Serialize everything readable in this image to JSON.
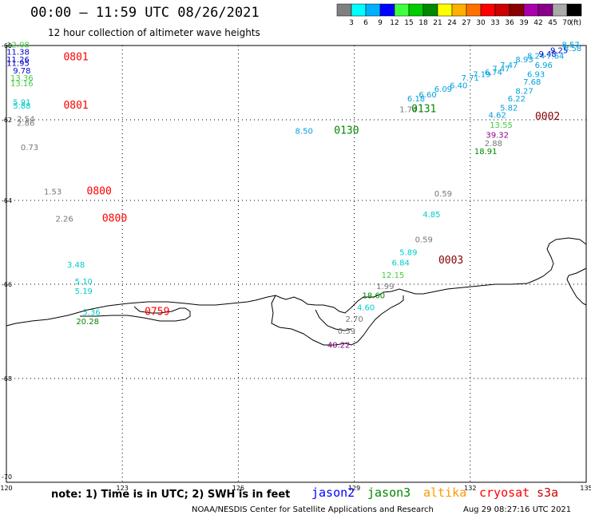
{
  "header": {
    "title": "00:00 – 11:59 UTC 08/26/2021",
    "subtitle": "12 hour collection of altimeter wave heights"
  },
  "colorbar": {
    "unit": "(ft)",
    "colors": [
      "#808080",
      "#00ffff",
      "#00b0ff",
      "#0000ff",
      "#40ff40",
      "#00cc00",
      "#008800",
      "#ffff00",
      "#ffb000",
      "#ff7000",
      "#ff0000",
      "#cc0000",
      "#880000",
      "#aa00aa",
      "#880088",
      "#aaaaaa",
      "#000000"
    ],
    "labels": [
      "3",
      "6",
      "9",
      "12",
      "15",
      "18",
      "21",
      "24",
      "27",
      "30",
      "33",
      "36",
      "39",
      "42",
      "45",
      "70"
    ]
  },
  "axes": {
    "lon_ticks": [
      120,
      123,
      126,
      129,
      132,
      135
    ],
    "lat_ticks": [
      -60,
      -62,
      -64,
      -66,
      -68,
      -70
    ],
    "lon_tick_labels": [
      "120",
      "123",
      "126",
      "129",
      "132",
      "135"
    ],
    "lat_tick_labels": [
      "-60",
      "-62",
      "-64",
      "-66",
      "-68",
      "-70"
    ]
  },
  "map_colors": {
    "purple": "#880088",
    "gray": "#777777",
    "cyan": "#00cccc",
    "blue": "#0000cc",
    "green": "#008800",
    "lightgreen": "#40cc40",
    "red": "#ff0000",
    "maroon": "#880000",
    "skyblue": "#00a0e0"
  },
  "observations": [
    {
      "lon": 120.3,
      "lat": -60.05,
      "value": "12.08",
      "color": "lightgreen"
    },
    {
      "lon": 120.3,
      "lat": -60.25,
      "value": "11.38",
      "color": "blue"
    },
    {
      "lon": 120.3,
      "lat": -60.45,
      "value": "11.26",
      "color": "blue"
    },
    {
      "lon": 120.3,
      "lat": -60.55,
      "value": "11.95",
      "color": "blue"
    },
    {
      "lon": 120.4,
      "lat": -60.75,
      "value": "9.78",
      "color": "blue"
    },
    {
      "lon": 120.4,
      "lat": -60.95,
      "value": "13.36",
      "color": "lightgreen"
    },
    {
      "lon": 120.4,
      "lat": -61.1,
      "value": "13.16",
      "color": "lightgreen"
    },
    {
      "lon": 120.4,
      "lat": -61.6,
      "value": "5.91",
      "color": "cyan"
    },
    {
      "lon": 120.4,
      "lat": -61.7,
      "value": "5.88",
      "color": "cyan"
    },
    {
      "lon": 120.5,
      "lat": -62.05,
      "value": "2.54",
      "color": "gray"
    },
    {
      "lon": 120.5,
      "lat": -62.15,
      "value": "2.86",
      "color": "gray"
    },
    {
      "lon": 120.6,
      "lat": -62.75,
      "value": "0.73",
      "color": "gray"
    },
    {
      "lon": 121.2,
      "lat": -63.85,
      "value": "1.53",
      "color": "gray"
    },
    {
      "lon": 121.5,
      "lat": -64.5,
      "value": "2.26",
      "color": "gray"
    },
    {
      "lon": 121.8,
      "lat": -65.6,
      "value": "3.48",
      "color": "cyan"
    },
    {
      "lon": 122.0,
      "lat": -66.0,
      "value": "5.10",
      "color": "cyan"
    },
    {
      "lon": 122.0,
      "lat": -66.2,
      "value": "5.19",
      "color": "cyan"
    },
    {
      "lon": 122.2,
      "lat": -66.65,
      "value": "5.36",
      "color": "cyan"
    },
    {
      "lon": 122.1,
      "lat": -66.85,
      "value": "20.28",
      "color": "green"
    },
    {
      "lon": 127.7,
      "lat": -62.35,
      "value": "8.50",
      "color": "skyblue"
    },
    {
      "lon": 130.4,
      "lat": -61.8,
      "value": "1.74",
      "color": "gray"
    },
    {
      "lon": 131.3,
      "lat": -63.9,
      "value": "0.59",
      "color": "gray"
    },
    {
      "lon": 131.0,
      "lat": -64.4,
      "value": "4.85",
      "color": "cyan"
    },
    {
      "lon": 130.8,
      "lat": -65.0,
      "value": "0.59",
      "color": "gray"
    },
    {
      "lon": 130.4,
      "lat": -65.3,
      "value": "5.89",
      "color": "cyan"
    },
    {
      "lon": 130.2,
      "lat": -65.55,
      "value": "6.84",
      "color": "cyan"
    },
    {
      "lon": 130.0,
      "lat": -65.85,
      "value": "12.15",
      "color": "lightgreen"
    },
    {
      "lon": 129.8,
      "lat": -66.1,
      "value": "1.99",
      "color": "gray"
    },
    {
      "lon": 129.5,
      "lat": -66.3,
      "value": "18.60",
      "color": "green"
    },
    {
      "lon": 129.3,
      "lat": -66.55,
      "value": "4.60",
      "color": "cyan"
    },
    {
      "lon": 129.0,
      "lat": -66.8,
      "value": "2.70",
      "color": "gray"
    },
    {
      "lon": 128.8,
      "lat": -67.05,
      "value": "0.59",
      "color": "gray"
    },
    {
      "lon": 128.6,
      "lat": -67.35,
      "value": "40.22",
      "color": "purple"
    },
    {
      "lon": 130.6,
      "lat": -61.5,
      "value": "6.18",
      "color": "skyblue"
    },
    {
      "lon": 130.9,
      "lat": -61.4,
      "value": "6.60",
      "color": "skyblue"
    },
    {
      "lon": 131.3,
      "lat": -61.25,
      "value": "6.09",
      "color": "skyblue"
    },
    {
      "lon": 131.7,
      "lat": -61.15,
      "value": "6.40",
      "color": "skyblue"
    },
    {
      "lon": 132.0,
      "lat": -60.95,
      "value": "7.71",
      "color": "skyblue"
    },
    {
      "lon": 132.3,
      "lat": -60.85,
      "value": "7.19",
      "color": "skyblue"
    },
    {
      "lon": 132.6,
      "lat": -60.8,
      "value": "6.74",
      "color": "skyblue"
    },
    {
      "lon": 132.8,
      "lat": -60.7,
      "value": "7.47",
      "color": "skyblue"
    },
    {
      "lon": 133.0,
      "lat": -60.6,
      "value": "7.47",
      "color": "skyblue"
    },
    {
      "lon": 133.4,
      "lat": -60.45,
      "value": "8.93",
      "color": "skyblue"
    },
    {
      "lon": 133.7,
      "lat": -60.35,
      "value": "8.24",
      "color": "skyblue"
    },
    {
      "lon": 134.0,
      "lat": -60.3,
      "value": "9.48",
      "color": "blue"
    },
    {
      "lon": 134.3,
      "lat": -60.2,
      "value": "9.25",
      "color": "blue"
    },
    {
      "lon": 134.6,
      "lat": -60.05,
      "value": "8.57",
      "color": "skyblue"
    },
    {
      "lon": 134.65,
      "lat": -60.15,
      "value": "8.58",
      "color": "skyblue"
    },
    {
      "lon": 134.2,
      "lat": -60.35,
      "value": "7.64",
      "color": "skyblue"
    },
    {
      "lon": 133.9,
      "lat": -60.6,
      "value": "6.96",
      "color": "skyblue"
    },
    {
      "lon": 133.7,
      "lat": -60.85,
      "value": "6.93",
      "color": "skyblue"
    },
    {
      "lon": 133.6,
      "lat": -61.05,
      "value": "7.68",
      "color": "skyblue"
    },
    {
      "lon": 133.4,
      "lat": -61.3,
      "value": "8.27",
      "color": "skyblue"
    },
    {
      "lon": 133.2,
      "lat": -61.5,
      "value": "6.22",
      "color": "skyblue"
    },
    {
      "lon": 133.0,
      "lat": -61.75,
      "value": "5.82",
      "color": "skyblue"
    },
    {
      "lon": 132.7,
      "lat": -61.95,
      "value": "4.62",
      "color": "skyblue"
    },
    {
      "lon": 132.8,
      "lat": -62.2,
      "value": "13.55",
      "color": "lightgreen"
    },
    {
      "lon": 132.7,
      "lat": -62.45,
      "value": "39.32",
      "color": "purple"
    },
    {
      "lon": 132.6,
      "lat": -62.65,
      "value": "2.88",
      "color": "gray"
    },
    {
      "lon": 132.4,
      "lat": -62.85,
      "value": "18.91",
      "color": "green"
    }
  ],
  "time_labels": [
    {
      "lon": 121.8,
      "lat": -60.4,
      "value": "0801",
      "color": "red"
    },
    {
      "lon": 121.8,
      "lat": -61.7,
      "value": "0801",
      "color": "red"
    },
    {
      "lon": 122.4,
      "lat": -63.85,
      "value": "0800",
      "color": "red"
    },
    {
      "lon": 122.8,
      "lat": -64.5,
      "value": "0800",
      "color": "red"
    },
    {
      "lon": 123.9,
      "lat": -66.65,
      "value": "0759",
      "color": "red"
    },
    {
      "lon": 128.8,
      "lat": -62.35,
      "value": "0130",
      "color": "green"
    },
    {
      "lon": 130.8,
      "lat": -61.8,
      "value": "0131",
      "color": "green"
    },
    {
      "lon": 134.0,
      "lat": -62.0,
      "value": "0002",
      "color": "maroon"
    },
    {
      "lon": 131.5,
      "lat": -65.5,
      "value": "0003",
      "color": "maroon"
    }
  ],
  "footer": {
    "note": "note:  1) Time is in UTC;  2) SWH is in feet",
    "satellites": [
      {
        "name": "jason2",
        "color": "#0000ff"
      },
      {
        "name": "jason3",
        "color": "#008800"
      },
      {
        "name": "altika",
        "color": "#ff9900"
      },
      {
        "name": "cryosat",
        "color": "#ff0000"
      },
      {
        "name": "s3a",
        "color": "#cc0000"
      }
    ],
    "credit": "NOAA/NESDIS Center for Satellite Applications and Research",
    "generated": "Aug 29 08:27:16 UTC 2021"
  }
}
